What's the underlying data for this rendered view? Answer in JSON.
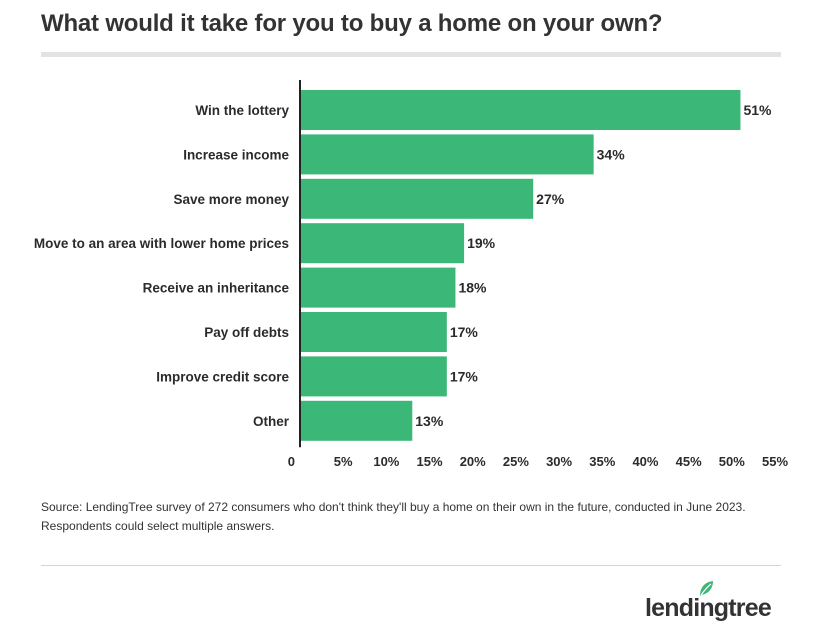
{
  "title": "What would it take for you to buy a home on your own?",
  "source_line1": "Source: LendingTree survey of 272 consumers who don't think they'll buy a home on their own in the future, conducted in June 2023.",
  "source_line2": "Respondents could select multiple answers.",
  "logo_text": "lendingtree",
  "colors": {
    "bar": "#3bb878",
    "axis": "#222222",
    "text": "#2b2b2b",
    "logo_leaf": "#3bb878"
  },
  "chart_data": {
    "type": "bar",
    "orientation": "horizontal",
    "categories": [
      "Win the lottery",
      "Increase income",
      "Save more money",
      "Move to an area with lower home prices",
      "Receive an inheritance",
      "Pay off debts",
      "Improve credit score",
      "Other"
    ],
    "values": [
      51,
      34,
      27,
      19,
      18,
      17,
      17,
      13
    ],
    "data_labels": [
      "51%",
      "34%",
      "27%",
      "19%",
      "18%",
      "17%",
      "17%",
      "13%"
    ],
    "xlim": [
      0,
      55
    ],
    "x_ticks": [
      0,
      5,
      10,
      15,
      20,
      25,
      30,
      35,
      40,
      45,
      50,
      55
    ],
    "x_tick_labels": [
      "0",
      "5%",
      "10%",
      "15%",
      "20%",
      "25%",
      "30%",
      "35%",
      "40%",
      "45%",
      "50%",
      "55%"
    ],
    "xlabel": "",
    "ylabel": "",
    "grid": false,
    "legend": "none"
  }
}
